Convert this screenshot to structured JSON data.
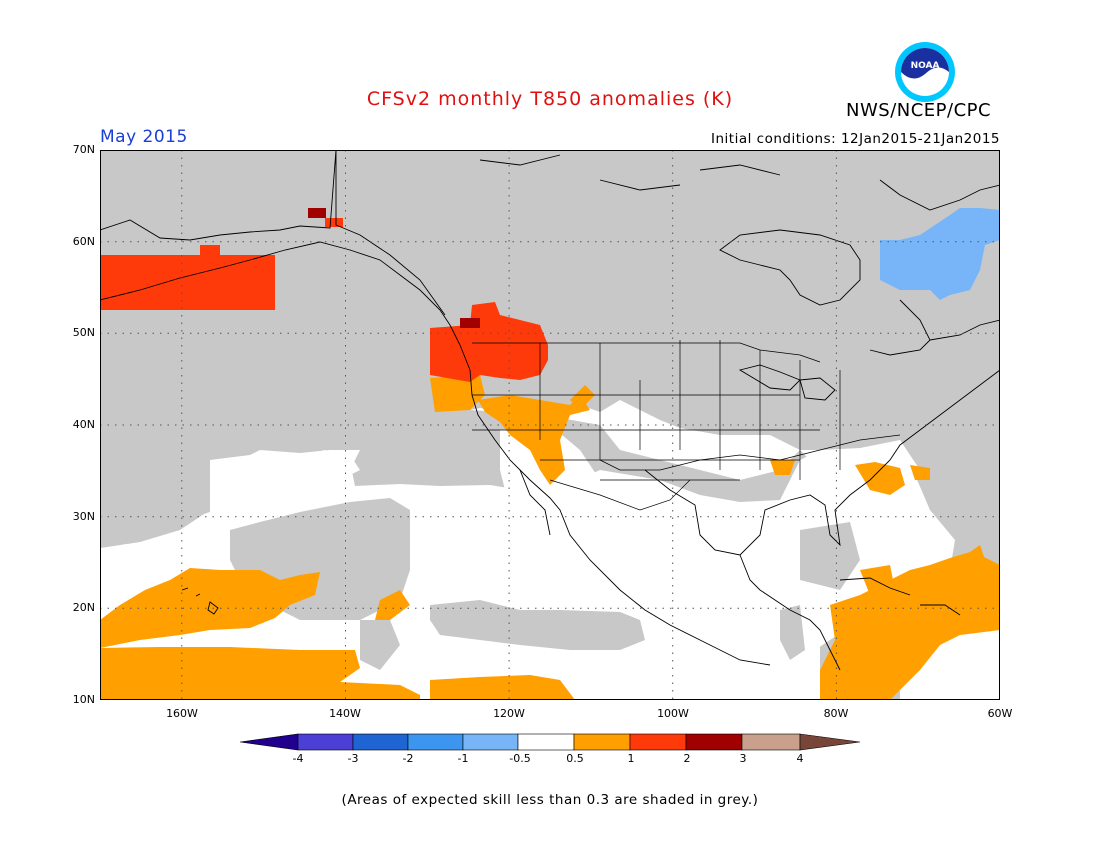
{
  "title": "CFSv2 monthly T850 anomalies (K)",
  "agency": "NWS/NCEP/CPC",
  "logo_text": "NOAA",
  "month": "May 2015",
  "initial_conditions": "Initial conditions: 12Jan2015-21Jan2015",
  "footnote": "(Areas of expected skill less than 0.3 are shaded in grey.)",
  "map": {
    "lon_range": [
      -170,
      -60
    ],
    "lat_range": [
      10,
      70
    ],
    "lat_labels": [
      "70N",
      "60N",
      "50N",
      "40N",
      "30N",
      "20N",
      "10N"
    ],
    "lon_labels": [
      "160W",
      "140W",
      "120W",
      "100W",
      "80W",
      "60W"
    ],
    "grid": "dotted",
    "colors": {
      "grey": "#c8c8c8",
      "white": "#ffffff",
      "orange": "#ff9f00",
      "red_orange": "#ff3a0a",
      "dark_red": "#a00000",
      "light_blue": "#78b4f8"
    }
  },
  "colorbar": {
    "labels": [
      "-4",
      "-3",
      "-2",
      "-1",
      "-0.5",
      "0.5",
      "1",
      "2",
      "3",
      "4"
    ],
    "colors": [
      "#20008c",
      "#4b3fd6",
      "#1e64d2",
      "#3c96f0",
      "#78b4f8",
      "#ffffff",
      "#ff9f00",
      "#ff3a0a",
      "#a00000",
      "#c8a08c",
      "#784638"
    ]
  }
}
